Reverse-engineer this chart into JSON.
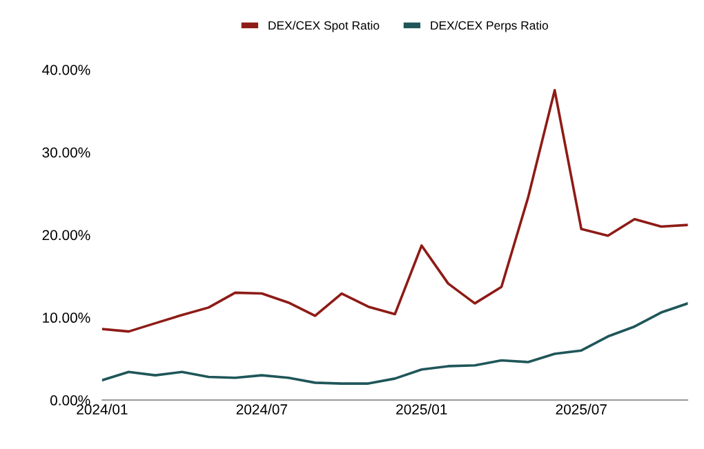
{
  "chart_data": {
    "type": "line",
    "categories": [
      "2024/01",
      null,
      null,
      null,
      null,
      null,
      "2024/07",
      null,
      null,
      null,
      null,
      null,
      "2025/01",
      null,
      null,
      null,
      null,
      null,
      "2025/07",
      null,
      null,
      null,
      null
    ],
    "series": [
      {
        "name": "DEX/CEX Spot Ratio",
        "color": "#8e1b16",
        "values": [
          8.6,
          8.3,
          9.3,
          10.3,
          11.2,
          13.0,
          12.9,
          11.8,
          10.2,
          12.9,
          11.3,
          10.4,
          18.7,
          14.1,
          11.7,
          13.7,
          24.5,
          37.5,
          20.7,
          19.9,
          21.9,
          21.0,
          21.2
        ]
      },
      {
        "name": "DEX/CEX Perps Ratio",
        "color": "#1f5659",
        "values": [
          2.4,
          3.4,
          3.0,
          3.4,
          2.8,
          2.7,
          3.0,
          2.7,
          2.1,
          2.0,
          2.0,
          2.6,
          3.7,
          4.1,
          4.2,
          4.8,
          4.6,
          5.6,
          6.0,
          7.7,
          8.9,
          10.6,
          11.7
        ]
      }
    ],
    "ylim": [
      0,
      40
    ],
    "yticks": [
      {
        "value": 0,
        "label": "0.00%"
      },
      {
        "value": 10,
        "label": "10.00%"
      },
      {
        "value": 20,
        "label": "20.00%"
      },
      {
        "value": 30,
        "label": "30.00%"
      },
      {
        "value": 40,
        "label": "40.00%"
      }
    ],
    "grid": false,
    "legend": "top",
    "marker": "none",
    "line_style": "solid"
  }
}
